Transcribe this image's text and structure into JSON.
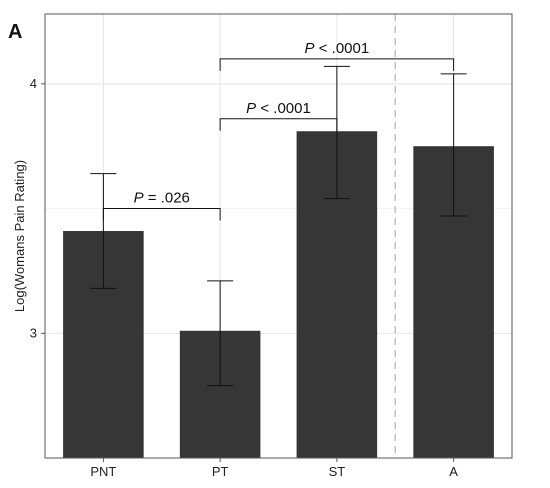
{
  "panel_label": "A",
  "chart_data": {
    "type": "bar",
    "title": "",
    "xlabel": "",
    "ylabel": "Log(Womans Pain Rating)",
    "categories": [
      "PNT",
      "PT",
      "ST",
      "A"
    ],
    "values": [
      3.41,
      3.01,
      3.81,
      3.75
    ],
    "error_low": [
      3.18,
      2.79,
      3.54,
      3.47
    ],
    "error_high": [
      3.64,
      3.21,
      4.07,
      4.04
    ],
    "ylim": [
      2.5,
      4.28
    ],
    "yticks": [
      3,
      4
    ],
    "ytick_labels": [
      "3",
      "4"
    ],
    "grid": true,
    "bar_color": "#363636",
    "divider_after_category": "ST",
    "annotations": [
      {
        "from": "PNT",
        "to": "PT",
        "italic": "P",
        "rest": " = .026",
        "y": 3.5
      },
      {
        "from": "PT",
        "to": "ST",
        "italic": "P",
        "rest": " < .0001",
        "y": 3.86
      },
      {
        "from": "PT",
        "to": "A",
        "italic": "P",
        "rest": " < .0001",
        "y": 4.1
      }
    ]
  }
}
